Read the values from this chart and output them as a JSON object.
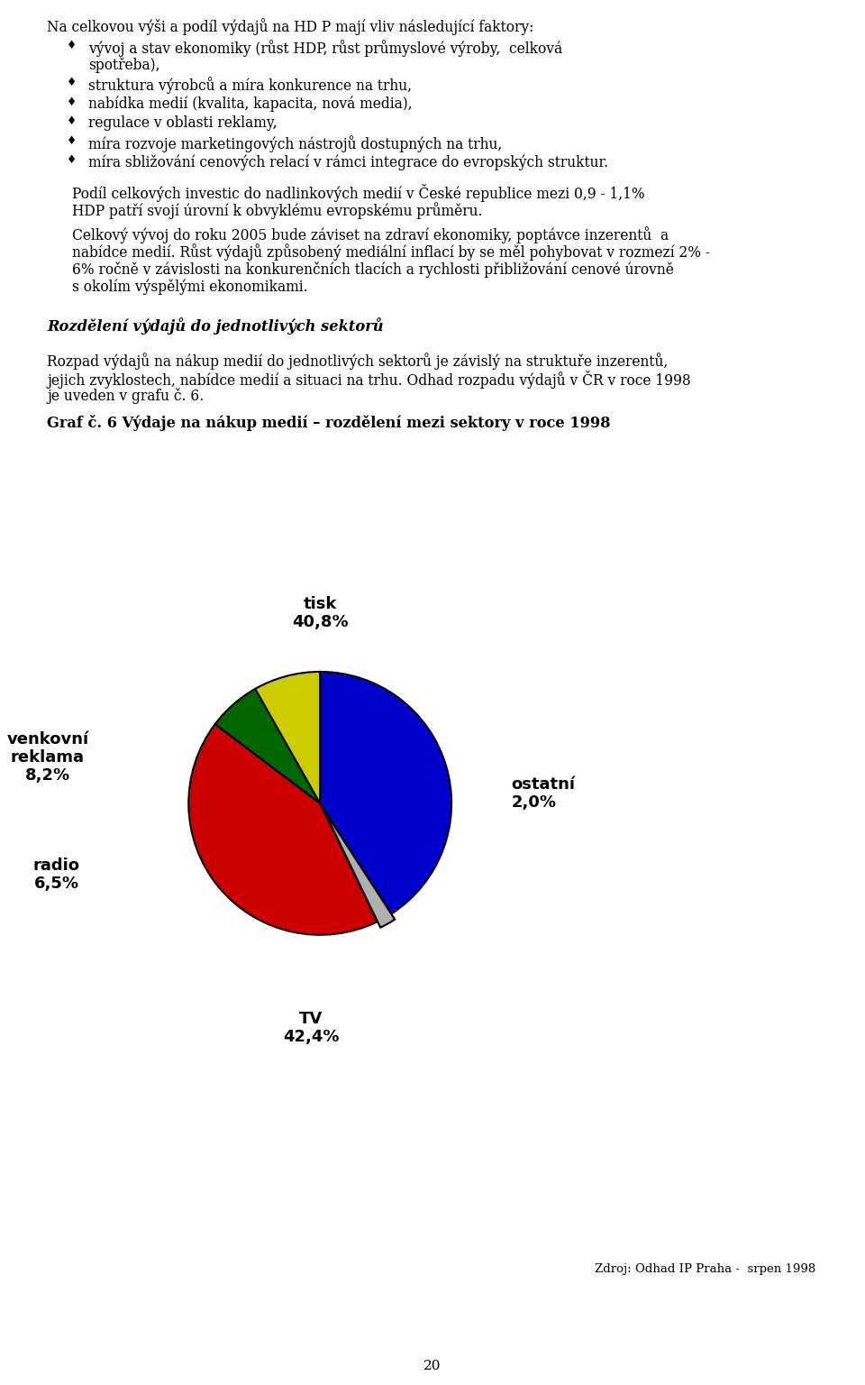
{
  "page_width": 9.6,
  "page_height": 15.36,
  "background_color": "#ffffff",
  "text_color": "#000000",
  "body_fontsize": 11.2,
  "bullet_char": "♦",
  "paragraph1_intro": "Na celkovou výši a podíl výdajů na HD P mají vliv následující faktory:",
  "bullet1_line1": "vývoj a stav ekonomiky (růst HDP, růst průmyslové výroby,  celková",
  "bullet1_line2": "spotřeba),",
  "bullets_rest": [
    "struktura výrobců a míra konkurence na trhu,",
    "nabídka medií (kvalita, kapacita, nová media),",
    "regulace v oblasti reklamy,",
    "míra rozvoje marketingových nástrojů dostupných na trhu,",
    "míra sbližování cenových relací v rámci integrace do evropských struktur."
  ],
  "paragraph2_line1": "Podíl celkových investic do nadlinkových medií v České republice mezi 0,9 - 1,1%",
  "paragraph2_line2": "HDP patří svojí úrovní k obvyklému evropskému průměru.",
  "paragraph3_line1": "Celkový vývoj do roku 2005 bude záviset na zdraví ekonomiky, poptávce inzerentů  a",
  "paragraph3_line2": "nabídce medií. Růst výdajů způsobený mediální inflací by se měl pohybovat v rozmezí 2% -",
  "paragraph3_line3": "6% ročně v závislosti na konkurenčních tlacích a rychlosti přibližování cenové úrovně",
  "paragraph3_line4": "s okolím výspělými ekonomikami.",
  "section_title": "Rozdělení výdajů do jednotlivých sektorů",
  "paragraph4_line1": "Rozpad výdajů na nákup medií do jednotlivých sektorů je závislý na struktuře inzerentů,",
  "paragraph4_line2": "jejich zvyklostech, nabídce medií a situaci na trhu. Odhad rozpadu výdajů v ČR v roce 1998",
  "paragraph4_line3": "je uveden v grafu č. 6.",
  "graph_title": "Graf č. 6 Výdaje na nákup medií – rozdělení mezi sektory v roce 1998",
  "pie_values": [
    40.8,
    2.0,
    42.4,
    6.5,
    8.2
  ],
  "pie_colors": [
    "#0000cc",
    "#b0b0b0",
    "#cc0000",
    "#006600",
    "#cccc00"
  ],
  "pie_explode": [
    0,
    0.05,
    0,
    0,
    0
  ],
  "pie_startangle": 90,
  "label_tisk": "tisk\n40,8%",
  "label_ostatni": "ostatní\n2,0%",
  "label_tv": "TV\n42,4%",
  "label_radio": "radio\n6,5%",
  "label_venkovni": "venkovní\nreklama\n8,2%",
  "source_text": "Zdroj: Odhad IP Praha -  srpen 1998",
  "page_number": "20"
}
